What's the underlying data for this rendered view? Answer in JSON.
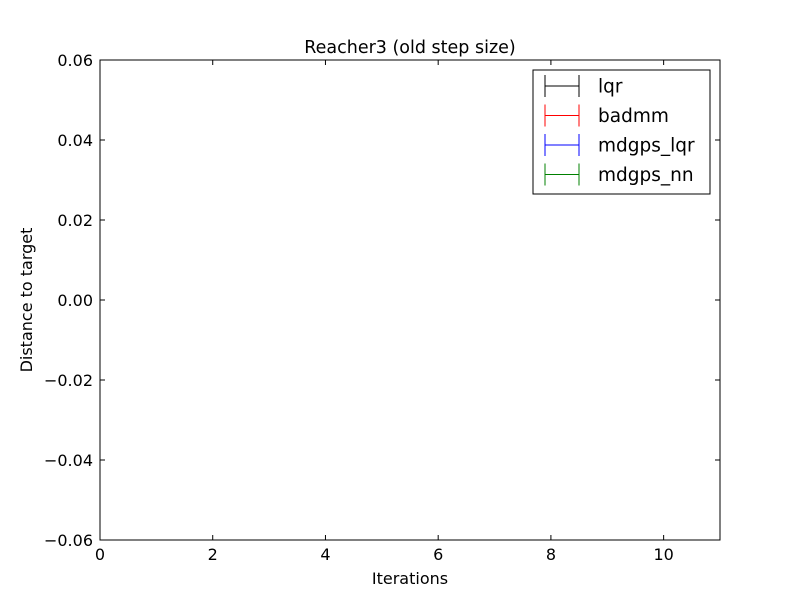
{
  "chart_data": {
    "type": "line",
    "title": "Reacher3 (old step size)",
    "xlabel": "Iterations",
    "ylabel": "Distance to target",
    "xlim": [
      0,
      11
    ],
    "ylim": [
      -0.06,
      0.06
    ],
    "x_ticks": [
      "0",
      "2",
      "4",
      "6",
      "8",
      "10"
    ],
    "y_ticks": [
      "0.06",
      "0.04",
      "0.02",
      "0.00",
      "−0.02",
      "−0.04",
      "−0.06"
    ],
    "grid": false,
    "legend_position": "top-right",
    "series": [
      {
        "name": "lqr",
        "color": "#000000",
        "x": [],
        "y": [],
        "err": []
      },
      {
        "name": "badmm",
        "color": "#ff0000",
        "x": [],
        "y": [],
        "err": []
      },
      {
        "name": "mdgps_lqr",
        "color": "#0000ff",
        "x": [],
        "y": [],
        "err": []
      },
      {
        "name": "mdgps_nn",
        "color": "#008000",
        "x": [],
        "y": [],
        "err": []
      }
    ]
  }
}
